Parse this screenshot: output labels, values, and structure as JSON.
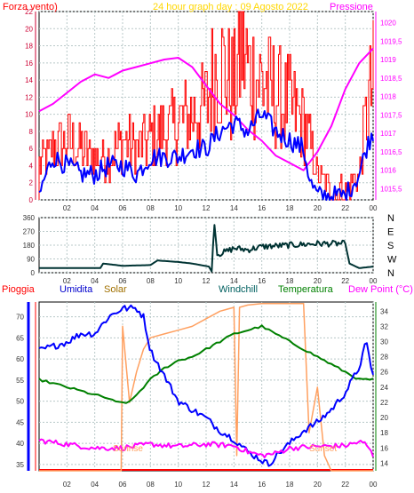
{
  "header": {
    "left_title": "Forza vento)",
    "center_title": "24 hour graph day : 09 Agosto 2022",
    "right_title": "Pressione"
  },
  "legend": {
    "pioggia": "Pioggia",
    "umidita": "Umidita",
    "solar": "Solar",
    "windchill": "Windchill",
    "temperatura": "Temperatura",
    "dewpoint": "Dew Point (°C)"
  },
  "annotations": {
    "sunrise": "Sunrise",
    "sunset": "Sunset"
  },
  "colors": {
    "wind": "#ff0000",
    "gust": "#ff0000",
    "pressure": "#ff00ff",
    "wind_avg": "#0000ff",
    "direction": "#003333",
    "humidity": "#0000ff",
    "solar": "#ffa060",
    "temperature": "#008000",
    "dewpoint": "#ff00ff",
    "rain": "#ff0000",
    "left_axis": "#cc0033",
    "grid": "#b8c8c8"
  },
  "chart_data": [
    {
      "type": "line",
      "x_ticks": [
        "02",
        "04",
        "06",
        "08",
        "10",
        "12",
        "14",
        "16",
        "18",
        "20",
        "22",
        "00"
      ],
      "y_left_ticks": [
        "0",
        "2",
        "4",
        "6",
        "8",
        "10",
        "12",
        "14",
        "16",
        "18",
        "20",
        "22"
      ],
      "y_right_ticks": [
        "1015,5",
        "1016",
        "1016,5",
        "1017",
        "1017,5",
        "1018",
        "1018,5",
        "1019",
        "1019,5",
        "1020"
      ],
      "ylim_left": [
        0,
        22
      ],
      "ylim_right": [
        1015.2,
        1020.3
      ],
      "series": [
        {
          "name": "Forza vento)",
          "axis": "left",
          "x": [
            0,
            1,
            2,
            3,
            4,
            5,
            6,
            7,
            8,
            9,
            10,
            11,
            12,
            12.5,
            13,
            13.5,
            14,
            14.5,
            15,
            16,
            17,
            18,
            18.5,
            19,
            19.5,
            20,
            21,
            22,
            23,
            23.5,
            24
          ],
          "y": [
            4,
            6,
            7,
            6,
            5,
            5,
            7,
            6,
            7,
            8,
            9,
            10,
            11,
            15,
            16,
            14,
            13,
            18,
            15,
            14,
            12,
            11,
            10,
            9,
            6,
            3,
            1,
            1,
            3,
            10,
            14
          ]
        },
        {
          "name": "Pressione",
          "axis": "right",
          "x": [
            0,
            1,
            2,
            3,
            4,
            5,
            6,
            7,
            8,
            9,
            10,
            11,
            12,
            13,
            14,
            15,
            16,
            17,
            18,
            19,
            20,
            21,
            22,
            23,
            24
          ],
          "y": [
            1017.6,
            1017.8,
            1018.1,
            1018.4,
            1018.6,
            1018.5,
            1018.7,
            1018.8,
            1018.9,
            1019.0,
            1019.05,
            1018.8,
            1018.3,
            1017.8,
            1017.5,
            1017.1,
            1016.8,
            1016.4,
            1016.2,
            1016.0,
            1016.5,
            1017.2,
            1018.2,
            1018.9,
            1019.3
          ]
        },
        {
          "name": "",
          "axis": "left",
          "x": [
            0,
            0.5,
            1,
            2,
            3,
            4,
            5,
            6,
            7,
            8,
            9,
            10,
            11,
            12,
            13,
            14,
            15,
            16,
            17,
            18,
            19,
            19.5,
            20,
            21,
            22,
            23,
            23.5,
            24
          ],
          "y": [
            0.5,
            3,
            5,
            4,
            3,
            3,
            4,
            4,
            3,
            5,
            5,
            5,
            6,
            6,
            8,
            9,
            8,
            10,
            8,
            7,
            6,
            2,
            0.5,
            0.5,
            0.5,
            3,
            6,
            8
          ]
        }
      ]
    },
    {
      "type": "line",
      "x_ticks": [
        "02",
        "04",
        "06",
        "08",
        "10",
        "12",
        "14",
        "16",
        "18",
        "20",
        "22",
        "00"
      ],
      "y_left_ticks": [
        "0",
        "90",
        "180",
        "270",
        "360"
      ],
      "y_right_ticks": [
        "N",
        "W",
        "S",
        "E",
        "N"
      ],
      "ylim": [
        0,
        360
      ],
      "series": [
        {
          "name": "",
          "x": [
            0,
            3,
            4.4,
            4.6,
            6,
            8,
            8.5,
            10,
            11,
            12.2,
            12.45,
            12.55,
            12.8,
            13.5,
            14,
            15,
            16,
            17,
            18,
            19,
            20,
            21,
            22,
            22.3,
            23,
            24
          ],
          "y": [
            30,
            30,
            30,
            60,
            45,
            50,
            80,
            70,
            60,
            40,
            0,
            360,
            120,
            140,
            160,
            150,
            170,
            175,
            180,
            185,
            190,
            190,
            190,
            60,
            30,
            40
          ]
        }
      ]
    },
    {
      "type": "line",
      "x_ticks": [
        "02",
        "04",
        "06",
        "08",
        "10",
        "12",
        "14",
        "16",
        "18",
        "20",
        "22",
        "00"
      ],
      "y_left_ticks": [
        "35",
        "40",
        "45",
        "50",
        "55",
        "60",
        "65",
        "70"
      ],
      "y_right_ticks": [
        "14",
        "16",
        "18",
        "20",
        "22",
        "24",
        "26",
        "28",
        "30",
        "32",
        "34"
      ],
      "ylim_left": [
        33.5,
        73.5
      ],
      "ylim_right": [
        13,
        35.2
      ],
      "series": [
        {
          "name": "Umidita",
          "axis": "left",
          "x": [
            0,
            1,
            2,
            3,
            4,
            5,
            6,
            7,
            7.5,
            8,
            9,
            10,
            11,
            12,
            13,
            14,
            15,
            16,
            16.5,
            17,
            18,
            19,
            20,
            21,
            22,
            23,
            23.5,
            24
          ],
          "y": [
            62,
            63,
            64,
            66,
            66,
            70,
            72,
            72,
            70,
            62,
            56,
            50,
            48,
            46,
            43,
            41,
            38,
            36,
            35,
            37,
            40,
            43,
            45,
            48,
            52,
            58,
            64,
            56
          ]
        },
        {
          "name": "Temperatura",
          "axis": "right",
          "x": [
            0,
            1,
            2,
            3,
            4,
            5,
            5.5,
            6,
            6.5,
            7,
            8,
            9,
            10,
            11,
            12,
            13,
            14,
            15,
            16,
            17,
            18,
            19,
            20,
            21,
            22,
            23,
            24
          ],
          "y": [
            25,
            24.5,
            24,
            23.5,
            23,
            22.5,
            22,
            22,
            22,
            23,
            25,
            26.5,
            27.5,
            28,
            29,
            30,
            31,
            31.5,
            32,
            31,
            30,
            29,
            28,
            27,
            26,
            25,
            25
          ]
        },
        {
          "name": "Solar",
          "axis": "right",
          "x": [
            0,
            5.9,
            6,
            6.5,
            7,
            7.5,
            8,
            9,
            10,
            11,
            12,
            13,
            14,
            14.2,
            14.4,
            15,
            16,
            17,
            18,
            19,
            19.4,
            20,
            20.5,
            21,
            24
          ],
          "y": [
            13,
            13,
            32,
            22,
            26,
            29,
            30.5,
            31,
            31.5,
            32,
            33,
            34,
            34.5,
            15,
            34.5,
            34.8,
            35,
            35,
            35,
            35,
            18,
            24,
            15,
            13,
            13
          ]
        },
        {
          "name": "Dew Point (°C)",
          "axis": "right",
          "x": [
            0,
            2,
            4,
            6,
            8,
            10,
            12,
            14,
            15,
            16,
            17,
            18,
            20,
            22,
            23,
            23.5,
            24
          ],
          "y": [
            17,
            16.5,
            16,
            16,
            16.5,
            16.2,
            16.5,
            16.3,
            15.5,
            15,
            15.3,
            16,
            16.2,
            16.3,
            16.8,
            16.5,
            15
          ]
        }
      ]
    }
  ]
}
